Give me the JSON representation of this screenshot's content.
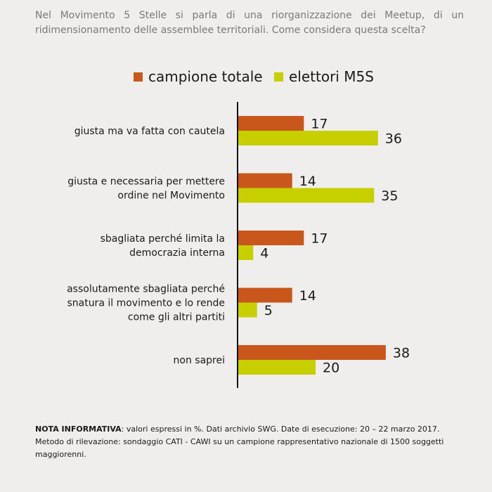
{
  "question": "Nel Movimento 5 Stelle si parla di una riorganizzazione dei Meetup, di un ridimensionamento delle assemblee territoriali. Come considera questa scelta?",
  "colors": {
    "campione": "#c9571c",
    "m5s": "#c8cf00",
    "background": "#f0eeec"
  },
  "chart_data": {
    "type": "bar",
    "orientation": "horizontal",
    "categories": [
      [
        "giusta ma va fatta con cautela"
      ],
      [
        "giusta e necessaria per mettere",
        "ordine nel Movimento"
      ],
      [
        "sbagliata perché limita la",
        "democrazia interna"
      ],
      [
        "assolutamente sbagliata perché",
        "snatura il movimento e lo rende",
        "come gli altri partiti"
      ],
      [
        "non saprei"
      ]
    ],
    "series": [
      {
        "name": "campione totale",
        "values": [
          17,
          14,
          17,
          14,
          38
        ]
      },
      {
        "name": "elettori M5S",
        "values": [
          36,
          35,
          4,
          5,
          20
        ]
      }
    ],
    "legend_position": "top",
    "grid": false
  },
  "note": {
    "label": "NOTA INFORMATIVA",
    "text": ": valori espressi in %. Dati archivio SWG. Date di esecuzione: 20 – 22 marzo 2017. Metodo di rilevazione: sondaggio CATI - CAWI su un campione rappresentativo nazionale di 1500 soggetti maggiorenni."
  }
}
